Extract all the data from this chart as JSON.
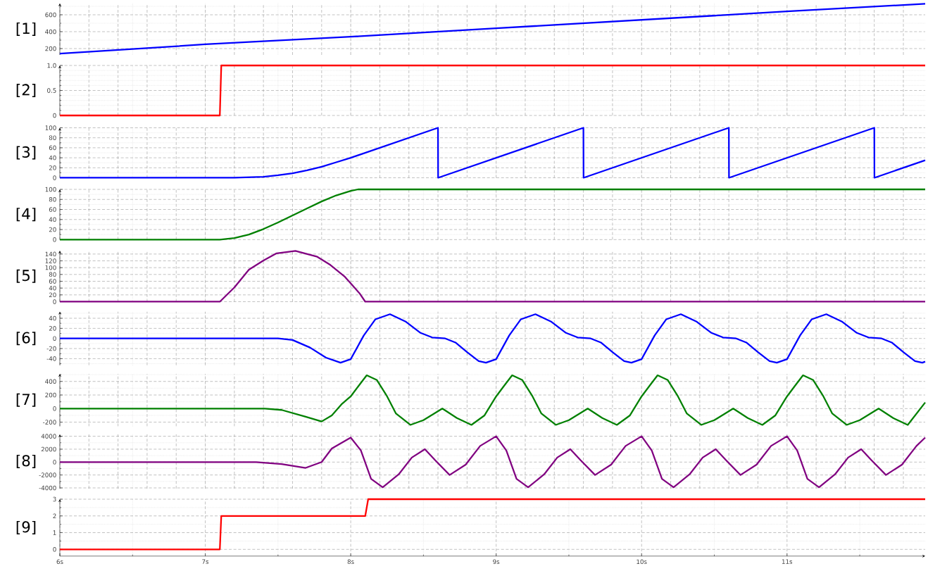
{
  "chart_data": [
    {
      "type": "line",
      "ylabel": "[1]",
      "x": [
        6,
        7,
        8,
        9,
        10,
        11,
        11.95
      ],
      "series": [
        {
          "color": "#0000ff",
          "values": [
            140,
            250,
            340,
            440,
            540,
            640,
            730
          ]
        }
      ],
      "xlim": [
        6,
        11.95
      ],
      "xticks": [
        {
          "value": 6,
          "label": null
        },
        {
          "value": 6.5,
          "label": null
        },
        {
          "value": 7,
          "label": null
        },
        {
          "value": 7.5,
          "label": null
        },
        {
          "value": 8,
          "label": null
        },
        {
          "value": 8.5,
          "label": null
        },
        {
          "value": 9,
          "label": null
        },
        {
          "value": 9.5,
          "label": null
        },
        {
          "value": 10,
          "label": null
        },
        {
          "value": 10.5,
          "label": null
        },
        {
          "value": 11,
          "label": null
        },
        {
          "value": 11.5,
          "label": null
        }
      ],
      "ylim": [
        125,
        735
      ],
      "yticks": [
        200,
        {
          "value": 300,
          "label": null
        },
        400,
        {
          "value": 500,
          "label": null
        },
        600,
        {
          "value": 700,
          "label": null
        }
      ],
      "grid": true,
      "tick_labels": "y"
    },
    {
      "type": "line",
      "ylabel": "[2]",
      "x": [
        6,
        7.1,
        7.11,
        11.95
      ],
      "series": [
        {
          "color": "#ff0000",
          "values": [
            0,
            0,
            1,
            1
          ]
        }
      ],
      "xlim": [
        6,
        11.95
      ],
      "xticks": [
        {
          "value": 6,
          "label": null
        },
        {
          "value": 6.5,
          "label": null
        },
        {
          "value": 7,
          "label": null
        },
        {
          "value": 7.5,
          "label": null
        },
        {
          "value": 8,
          "label": null
        },
        {
          "value": 8.5,
          "label": null
        },
        {
          "value": 9,
          "label": null
        },
        {
          "value": 9.5,
          "label": null
        },
        {
          "value": 10,
          "label": null
        },
        {
          "value": 10.5,
          "label": null
        },
        {
          "value": 11,
          "label": null
        },
        {
          "value": 11.5,
          "label": null
        }
      ],
      "ylim": [
        0,
        1
      ],
      "yticks": [
        0,
        {
          "value": 0.1,
          "label": null
        },
        {
          "value": 0.2,
          "label": null
        },
        {
          "value": 0.3,
          "label": null
        },
        {
          "value": 0.4,
          "label": null
        },
        0.5,
        {
          "value": 0.6,
          "label": null
        },
        {
          "value": 0.7,
          "label": null
        },
        {
          "value": 0.8,
          "label": null
        },
        {
          "value": 0.9,
          "label": null
        },
        {
          "value": 1,
          "label": "1.0"
        }
      ],
      "grid": true,
      "tick_labels": "y"
    },
    {
      "type": "line",
      "ylabel": "[3]",
      "x": [
        6,
        7.2,
        7.4,
        7.5,
        7.6,
        7.7,
        7.8,
        7.9,
        8,
        8.6,
        8.601,
        9.6,
        9.601,
        10.6,
        10.601,
        11.6,
        11.601,
        11.95
      ],
      "series": [
        {
          "color": "#0000ff",
          "values": [
            0,
            0,
            2,
            5,
            9,
            15,
            22,
            31,
            40,
            100,
            0,
            100,
            0,
            100,
            0,
            100,
            0,
            35
          ]
        }
      ],
      "xlim": [
        6,
        11.95
      ],
      "xticks": [
        {
          "value": 6,
          "label": null
        },
        {
          "value": 6.5,
          "label": null
        },
        {
          "value": 7,
          "label": null
        },
        {
          "value": 7.5,
          "label": null
        },
        {
          "value": 8,
          "label": null
        },
        {
          "value": 8.5,
          "label": null
        },
        {
          "value": 9,
          "label": null
        },
        {
          "value": 9.5,
          "label": null
        },
        {
          "value": 10,
          "label": null
        },
        {
          "value": 10.5,
          "label": null
        },
        {
          "value": 11,
          "label": null
        },
        {
          "value": 11.5,
          "label": null
        }
      ],
      "ylim": [
        0,
        100
      ],
      "yticks": [
        0,
        {
          "value": 10,
          "label": null
        },
        20,
        {
          "value": 30,
          "label": null
        },
        40,
        {
          "value": 50,
          "label": null
        },
        60,
        {
          "value": 70,
          "label": null
        },
        80,
        {
          "value": 90,
          "label": null
        },
        100
      ],
      "grid": true,
      "tick_labels": "y"
    },
    {
      "type": "line",
      "ylabel": "[4]",
      "x": [
        6,
        7.1,
        7.2,
        7.3,
        7.4,
        7.5,
        7.6,
        7.7,
        7.8,
        7.9,
        8,
        8.05,
        11.95
      ],
      "series": [
        {
          "color": "#008000",
          "values": [
            0,
            0,
            3,
            10,
            21,
            34,
            48,
            62,
            76,
            88,
            97,
            100,
            100
          ]
        }
      ],
      "xlim": [
        6,
        11.95
      ],
      "xticks": [
        {
          "value": 6,
          "label": null
        },
        {
          "value": 6.5,
          "label": null
        },
        {
          "value": 7,
          "label": null
        },
        {
          "value": 7.5,
          "label": null
        },
        {
          "value": 8,
          "label": null
        },
        {
          "value": 8.5,
          "label": null
        },
        {
          "value": 9,
          "label": null
        },
        {
          "value": 9.5,
          "label": null
        },
        {
          "value": 10,
          "label": null
        },
        {
          "value": 10.5,
          "label": null
        },
        {
          "value": 11,
          "label": null
        },
        {
          "value": 11.5,
          "label": null
        }
      ],
      "ylim": [
        0,
        100
      ],
      "yticks": [
        0,
        {
          "value": 10,
          "label": null
        },
        20,
        {
          "value": 30,
          "label": null
        },
        40,
        {
          "value": 50,
          "label": null
        },
        60,
        {
          "value": 70,
          "label": null
        },
        80,
        {
          "value": 90,
          "label": null
        },
        100
      ],
      "grid": true,
      "tick_labels": "y"
    },
    {
      "type": "line",
      "ylabel": "[5]",
      "x": [
        6,
        7.1,
        7.2,
        7.3,
        7.4,
        7.49,
        7.62,
        7.77,
        7.86,
        7.96,
        8.01,
        8.06,
        8.1,
        11.95
      ],
      "series": [
        {
          "color": "#800080",
          "values": [
            0,
            0,
            42,
            94,
            121,
            142,
            149,
            132,
            108,
            73,
            49,
            25,
            0,
            0
          ]
        }
      ],
      "xlim": [
        6,
        11.95
      ],
      "xticks": [
        {
          "value": 6,
          "label": null
        },
        {
          "value": 6.5,
          "label": null
        },
        {
          "value": 7,
          "label": null
        },
        {
          "value": 7.5,
          "label": null
        },
        {
          "value": 8,
          "label": null
        },
        {
          "value": 8.5,
          "label": null
        },
        {
          "value": 9,
          "label": null
        },
        {
          "value": 9.5,
          "label": null
        },
        {
          "value": 10,
          "label": null
        },
        {
          "value": 10.5,
          "label": null
        },
        {
          "value": 11,
          "label": null
        },
        {
          "value": 11.5,
          "label": null
        }
      ],
      "ylim": [
        0,
        150
      ],
      "yticks": [
        0,
        20,
        40,
        60,
        80,
        100,
        120,
        140
      ],
      "grid": true,
      "tick_labels": "y"
    },
    {
      "type": "line",
      "ylabel": "[6]",
      "x": [
        6,
        7.5,
        7.6,
        7.72,
        7.83,
        7.93,
        8,
        8.09,
        8.17,
        8.27,
        8.38,
        8.48,
        8.56,
        8.65,
        8.72,
        8.8,
        8.88,
        8.93,
        9,
        9.09,
        9.17,
        9.27,
        9.38,
        9.48,
        9.56,
        9.65,
        9.72,
        9.8,
        9.88,
        9.93,
        10,
        10.09,
        10.17,
        10.27,
        10.38,
        10.48,
        10.56,
        10.65,
        10.72,
        10.8,
        10.88,
        10.93,
        11,
        11.09,
        11.17,
        11.27,
        11.38,
        11.48,
        11.56,
        11.65,
        11.72,
        11.8,
        11.88,
        11.93,
        11.95
      ],
      "series": [
        {
          "color": "#0000ff",
          "values": [
            0,
            0,
            -3,
            -18,
            -38,
            -48,
            -41,
            6,
            38,
            48,
            33,
            11,
            2,
            0,
            -8,
            -27,
            -45,
            -48,
            -41,
            6,
            38,
            48,
            33,
            11,
            2,
            0,
            -8,
            -27,
            -45,
            -48,
            -41,
            6,
            38,
            48,
            33,
            11,
            2,
            0,
            -8,
            -27,
            -45,
            -48,
            -41,
            6,
            38,
            48,
            33,
            11,
            2,
            0,
            -8,
            -27,
            -45,
            -48,
            -46
          ]
        }
      ],
      "xlim": [
        6,
        11.95
      ],
      "xticks": [
        {
          "value": 6,
          "label": null
        },
        {
          "value": 6.5,
          "label": null
        },
        {
          "value": 7,
          "label": null
        },
        {
          "value": 7.5,
          "label": null
        },
        {
          "value": 8,
          "label": null
        },
        {
          "value": 8.5,
          "label": null
        },
        {
          "value": 9,
          "label": null
        },
        {
          "value": 9.5,
          "label": null
        },
        {
          "value": 10,
          "label": null
        },
        {
          "value": 10.5,
          "label": null
        },
        {
          "value": 11,
          "label": null
        },
        {
          "value": 11.5,
          "label": null
        }
      ],
      "ylim": [
        -53,
        53
      ],
      "yticks": [
        {
          "value": -50,
          "label": null
        },
        -40,
        {
          "value": -30,
          "label": null
        },
        -20,
        {
          "value": -10,
          "label": null
        },
        0,
        {
          "value": 10,
          "label": null
        },
        20,
        {
          "value": 30,
          "label": null
        },
        40,
        {
          "value": 50,
          "label": null
        }
      ],
      "grid": true,
      "tick_labels": "y"
    },
    {
      "type": "line",
      "ylabel": "[7]",
      "x": [
        6,
        7.41,
        7.525,
        7.69,
        7.8,
        7.87,
        7.94,
        8,
        8.06,
        8.11,
        8.18,
        8.25,
        8.31,
        8.41,
        8.5,
        8.63,
        8.73,
        8.83,
        8.92,
        9,
        9.06,
        9.11,
        9.18,
        9.25,
        9.31,
        9.41,
        9.5,
        9.63,
        9.73,
        9.83,
        9.92,
        10,
        10.06,
        10.11,
        10.18,
        10.25,
        10.31,
        10.41,
        10.5,
        10.63,
        10.73,
        10.83,
        10.92,
        11,
        11.06,
        11.11,
        11.18,
        11.25,
        11.31,
        11.41,
        11.5,
        11.63,
        11.73,
        11.83,
        11.95
      ],
      "series": [
        {
          "color": "#008000",
          "values": [
            0,
            0,
            -20,
            -120,
            -190,
            -100,
            70,
            180,
            350,
            490,
            420,
            180,
            -70,
            -240,
            -170,
            0,
            -140,
            -240,
            -100,
            180,
            350,
            490,
            420,
            180,
            -70,
            -240,
            -170,
            0,
            -140,
            -240,
            -100,
            180,
            350,
            490,
            420,
            180,
            -70,
            -240,
            -170,
            0,
            -140,
            -240,
            -100,
            180,
            350,
            490,
            420,
            180,
            -70,
            -240,
            -170,
            0,
            -140,
            -240,
            90
          ]
        }
      ],
      "xlim": [
        6,
        11.95
      ],
      "xticks": [
        {
          "value": 6,
          "label": null
        },
        {
          "value": 6.5,
          "label": null
        },
        {
          "value": 7,
          "label": null
        },
        {
          "value": 7.5,
          "label": null
        },
        {
          "value": 8,
          "label": null
        },
        {
          "value": 8.5,
          "label": null
        },
        {
          "value": 9,
          "label": null
        },
        {
          "value": 9.5,
          "label": null
        },
        {
          "value": 10,
          "label": null
        },
        {
          "value": 10.5,
          "label": null
        },
        {
          "value": 11,
          "label": null
        },
        {
          "value": 11.5,
          "label": null
        }
      ],
      "ylim": [
        -260,
        510
      ],
      "yticks": [
        -200,
        {
          "value": -100,
          "label": null
        },
        0,
        {
          "value": 100,
          "label": null
        },
        200,
        {
          "value": 300,
          "label": null
        },
        400,
        {
          "value": 500,
          "label": null
        }
      ],
      "grid": true,
      "tick_labels": "y"
    },
    {
      "type": "line",
      "ylabel": "[8]",
      "x": [
        6,
        7.35,
        7.525,
        7.69,
        7.8,
        7.87,
        8,
        8.07,
        8.14,
        8.22,
        8.33,
        8.42,
        8.51,
        8.58,
        8.68,
        8.79,
        8.89,
        9,
        9.07,
        9.14,
        9.22,
        9.33,
        9.42,
        9.51,
        9.58,
        9.68,
        9.79,
        9.89,
        10,
        10.07,
        10.14,
        10.22,
        10.33,
        10.42,
        10.51,
        10.58,
        10.68,
        10.79,
        10.89,
        11,
        11.07,
        11.14,
        11.22,
        11.33,
        11.42,
        11.51,
        11.58,
        11.68,
        11.79,
        11.89,
        11.95
      ],
      "series": [
        {
          "color": "#800080",
          "values": [
            0,
            0,
            -300,
            -900,
            0,
            2100,
            3800,
            1800,
            -2600,
            -3900,
            -1900,
            700,
            2000,
            300,
            -2000,
            -400,
            2500,
            4000,
            1800,
            -2600,
            -3900,
            -1900,
            700,
            2000,
            300,
            -2000,
            -400,
            2500,
            4000,
            1800,
            -2600,
            -3900,
            -1900,
            700,
            2000,
            300,
            -2000,
            -400,
            2500,
            4000,
            1800,
            -2600,
            -3900,
            -1900,
            700,
            2000,
            300,
            -2000,
            -400,
            2500,
            3800
          ]
        }
      ],
      "xlim": [
        6,
        11.95
      ],
      "xticks": [
        {
          "value": 6,
          "label": null
        },
        {
          "value": 6.5,
          "label": null
        },
        {
          "value": 7,
          "label": null
        },
        {
          "value": 7.5,
          "label": null
        },
        {
          "value": 8,
          "label": null
        },
        {
          "value": 8.5,
          "label": null
        },
        {
          "value": 9,
          "label": null
        },
        {
          "value": 9.5,
          "label": null
        },
        {
          "value": 10,
          "label": null
        },
        {
          "value": 10.5,
          "label": null
        },
        {
          "value": 11,
          "label": null
        },
        {
          "value": 11.5,
          "label": null
        }
      ],
      "ylim": [
        -4100,
        4300
      ],
      "yticks": [
        -4000,
        {
          "value": -3000,
          "label": null
        },
        -2000,
        {
          "value": -1000,
          "label": null
        },
        0,
        {
          "value": 1000,
          "label": null
        },
        2000,
        {
          "value": 3000,
          "label": null
        },
        4000
      ],
      "grid": true,
      "tick_labels": "y"
    },
    {
      "type": "line",
      "ylabel": "[9]",
      "x": [
        6,
        7.1,
        7.11,
        8.1,
        8.12,
        11.95
      ],
      "series": [
        {
          "color": "#ff0000",
          "values": [
            0,
            0,
            2,
            2,
            3,
            3
          ]
        }
      ],
      "xlim": [
        6,
        11.95
      ],
      "xticks": [
        {
          "value": 6,
          "label": "6s"
        },
        {
          "value": 6.5,
          "label": null
        },
        {
          "value": 7,
          "label": "7s"
        },
        {
          "value": 7.5,
          "label": null
        },
        {
          "value": 8,
          "label": "8s"
        },
        {
          "value": 8.5,
          "label": null
        },
        {
          "value": 9,
          "label": "9s"
        },
        {
          "value": 9.5,
          "label": null
        },
        {
          "value": 10,
          "label": "10s"
        },
        {
          "value": 10.5,
          "label": null
        },
        {
          "value": 11,
          "label": "11s"
        },
        {
          "value": 11.5,
          "label": null
        }
      ],
      "ylim": [
        -0.4,
        3
      ],
      "yticks": [
        0,
        {
          "value": 0.5,
          "label": null
        },
        1,
        {
          "value": 1.5,
          "label": null
        },
        2,
        {
          "value": 2.5,
          "label": null
        },
        3
      ],
      "grid": true
    }
  ]
}
